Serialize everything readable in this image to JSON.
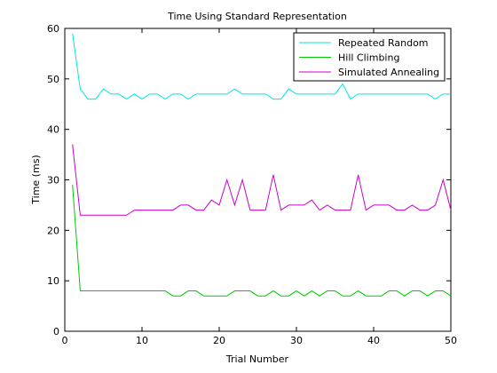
{
  "chart_data": {
    "type": "line",
    "title": "Time Using Standard Representation",
    "xlabel": "Trial Number",
    "ylabel": "Time (ms)",
    "xlim": [
      0,
      50
    ],
    "ylim": [
      0,
      60
    ],
    "xticks": [
      0,
      10,
      20,
      30,
      40,
      50
    ],
    "yticks": [
      0,
      10,
      20,
      30,
      40,
      50,
      60
    ],
    "grid": false,
    "legend_position": "top-right",
    "x": [
      1,
      2,
      3,
      4,
      5,
      6,
      7,
      8,
      9,
      10,
      11,
      12,
      13,
      14,
      15,
      16,
      17,
      18,
      19,
      20,
      21,
      22,
      23,
      24,
      25,
      26,
      27,
      28,
      29,
      30,
      31,
      32,
      33,
      34,
      35,
      36,
      37,
      38,
      39,
      40,
      41,
      42,
      43,
      44,
      45,
      46,
      47,
      48,
      49,
      50
    ],
    "series": [
      {
        "name": "Repeated Random",
        "color": "#00e5e5",
        "values": [
          59,
          48,
          46,
          46,
          48,
          47,
          47,
          46,
          47,
          46,
          47,
          47,
          46,
          47,
          47,
          46,
          47,
          47,
          47,
          47,
          47,
          48,
          47,
          47,
          47,
          47,
          46,
          46,
          48,
          47,
          47,
          47,
          47,
          47,
          47,
          49,
          46,
          47,
          47,
          47,
          47,
          47,
          47,
          47,
          47,
          47,
          47,
          46,
          47,
          47
        ]
      },
      {
        "name": "Hill Climbing",
        "color": "#00cc00",
        "values": [
          29,
          8,
          8,
          8,
          8,
          8,
          8,
          8,
          8,
          8,
          8,
          8,
          8,
          7,
          7,
          8,
          8,
          7,
          7,
          7,
          7,
          8,
          8,
          8,
          7,
          7,
          8,
          7,
          7,
          8,
          7,
          8,
          7,
          8,
          8,
          7,
          7,
          8,
          7,
          7,
          7,
          8,
          8,
          7,
          8,
          8,
          7,
          8,
          8,
          7
        ]
      },
      {
        "name": "Simulated Annealing",
        "color": "#cc00cc",
        "values": [
          37,
          23,
          23,
          23,
          23,
          23,
          23,
          23,
          24,
          24,
          24,
          24,
          24,
          24,
          25,
          25,
          24,
          24,
          26,
          25,
          30,
          25,
          30,
          24,
          24,
          24,
          31,
          24,
          25,
          25,
          25,
          26,
          24,
          25,
          24,
          24,
          24,
          31,
          24,
          25,
          25,
          25,
          24,
          24,
          25,
          24,
          24,
          25,
          30,
          24
        ]
      }
    ]
  }
}
